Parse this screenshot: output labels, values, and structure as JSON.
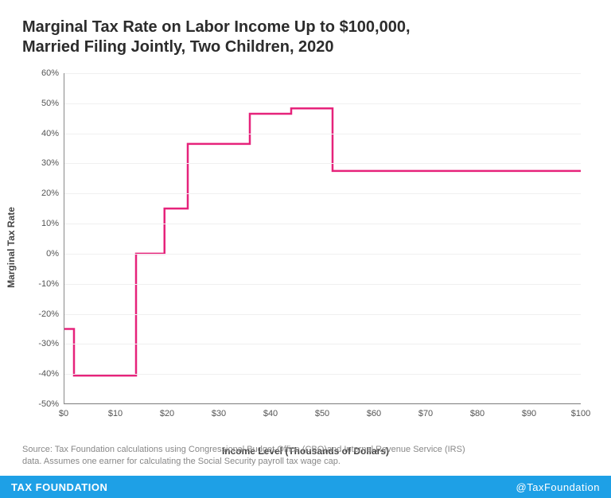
{
  "title_line1": "Marginal Tax Rate on Labor Income Up to $100,000,",
  "title_line2": "Married Filing Jointly, Two Children, 2020",
  "chart": {
    "type": "step-line",
    "ylabel": "Marginal Tax Rate",
    "xlabel": "Income Level (Thousands of Dollars)",
    "xlim": [
      0,
      100
    ],
    "ylim": [
      -50,
      60
    ],
    "xticks": [
      0,
      10,
      20,
      30,
      40,
      50,
      60,
      70,
      80,
      90,
      100
    ],
    "xtick_labels": [
      "$0",
      "$10",
      "$20",
      "$30",
      "$40",
      "$50",
      "$60",
      "$70",
      "$80",
      "$90",
      "$100"
    ],
    "yticks": [
      -50,
      -40,
      -30,
      -20,
      -10,
      0,
      10,
      20,
      30,
      40,
      50,
      60
    ],
    "ytick_labels": [
      "-50%",
      "-40%",
      "-30%",
      "-20%",
      "-10%",
      "0%",
      "10%",
      "20%",
      "30%",
      "40%",
      "50%",
      "60%"
    ],
    "line_color": "#e6237b",
    "line_width": 2.5,
    "axis_color": "#888888",
    "grid_color": "#f0f0f0",
    "background_color": "#ffffff",
    "step_points": [
      [
        0,
        -25
      ],
      [
        2,
        -25
      ],
      [
        2,
        -40.5
      ],
      [
        14,
        -40.5
      ],
      [
        14,
        0
      ],
      [
        19.5,
        0
      ],
      [
        19.5,
        15
      ],
      [
        24,
        15
      ],
      [
        24,
        36.5
      ],
      [
        36,
        36.5
      ],
      [
        36,
        46.5
      ],
      [
        44,
        46.5
      ],
      [
        44,
        48.3
      ],
      [
        52,
        48.3
      ],
      [
        52,
        27.5
      ],
      [
        100,
        27.5
      ]
    ]
  },
  "source_line1": "Source: Tax Foundation calculations using Congressional Budget Office (CBO)and Internal Revenue Service (IRS)",
  "source_line2": "data. Assumes one earner for calculating the Social Security payroll tax wage cap.",
  "footer_left": "TAX FOUNDATION",
  "footer_right": "@TaxFoundation",
  "footer_bg": "#1ea0e6"
}
